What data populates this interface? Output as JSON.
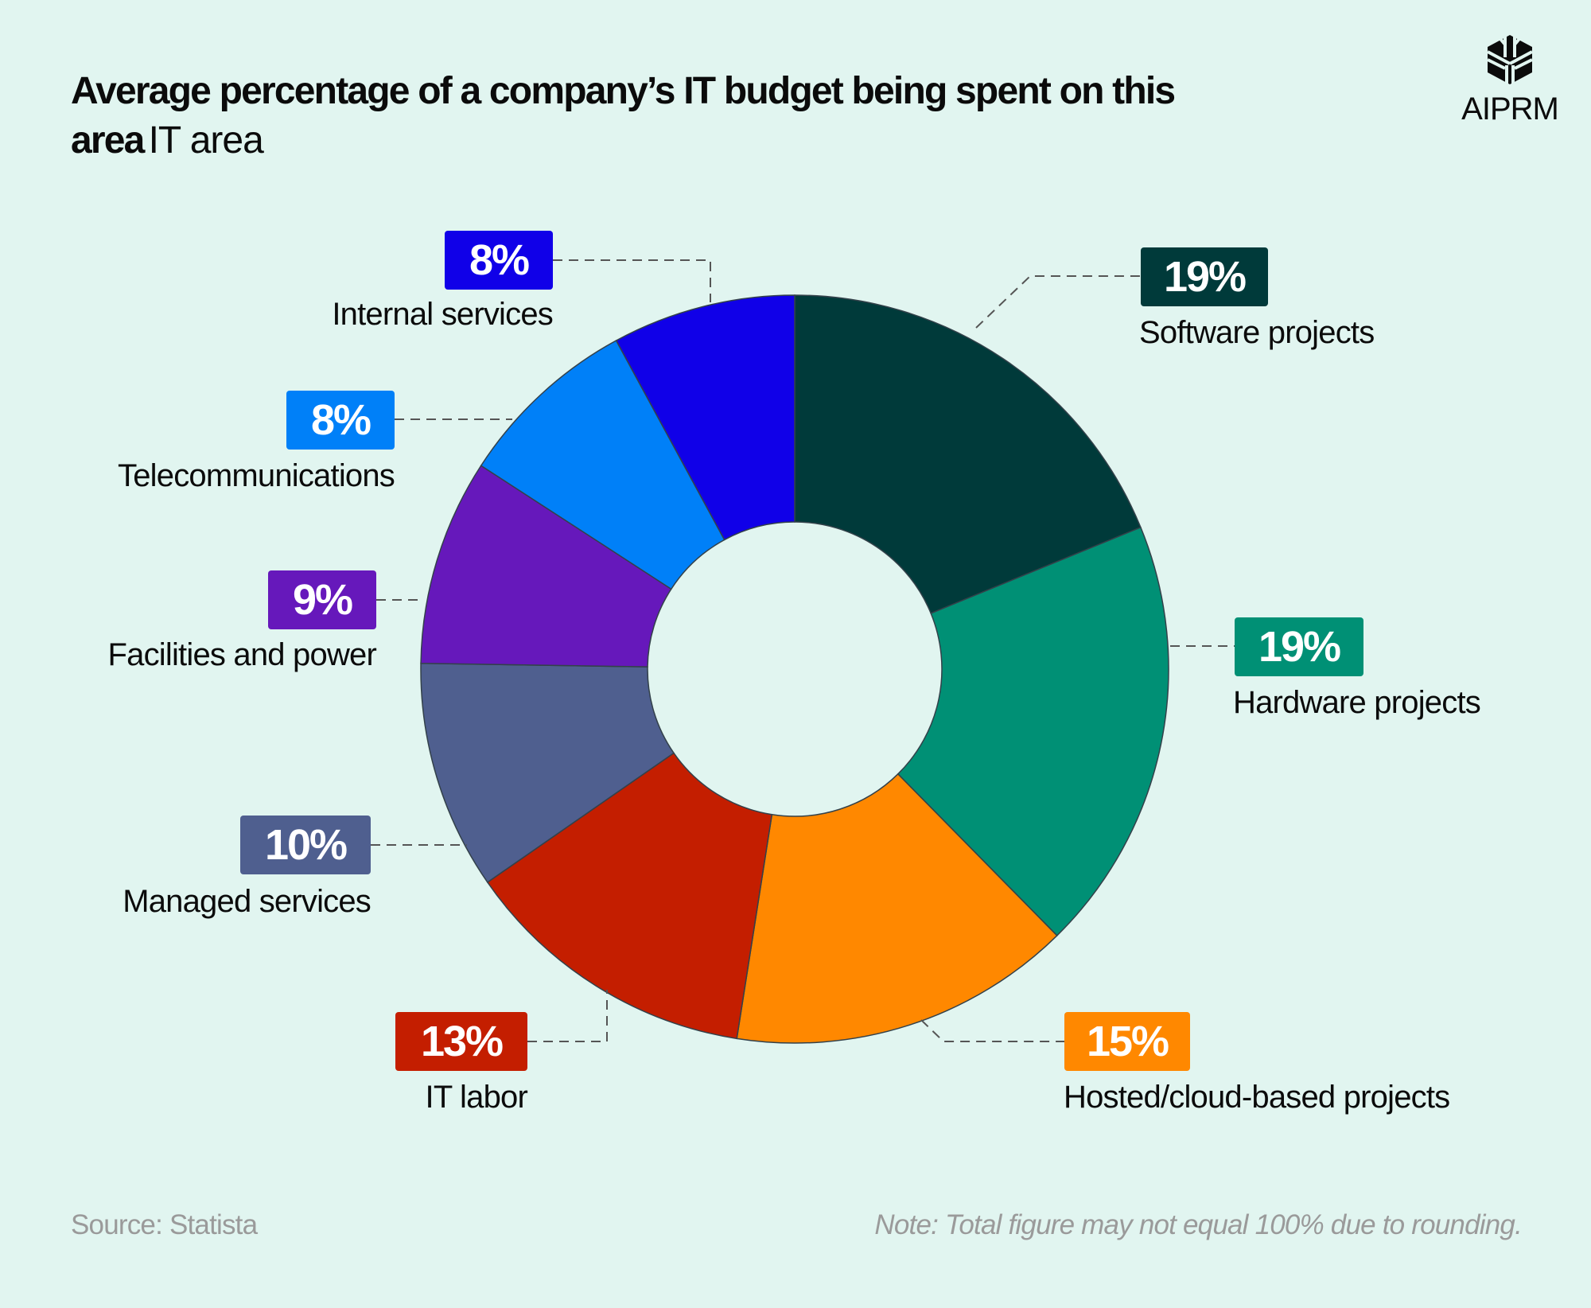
{
  "header": {
    "title_bold": "Average percentage of a company’s IT budget being spent on this area",
    "title_sub": "IT area"
  },
  "logo": {
    "text": "AIPRM",
    "icon": "aiprm-cube-icon"
  },
  "footer": {
    "source": "Source: Statista",
    "note": "Note: Total figure may not equal 100% due to rounding."
  },
  "chart_data": {
    "type": "pie",
    "variant": "donut",
    "title": "Average percentage of a company’s IT budget being spent on this area",
    "subtitle": "IT area",
    "unit": "%",
    "start": "top, clockwise",
    "slices": [
      {
        "label": "Software projects",
        "value": 19,
        "display": "19%",
        "color": "#003a3a"
      },
      {
        "label": "Hardware projects",
        "value": 19,
        "display": "19%",
        "color": "#009075"
      },
      {
        "label": "Hosted/cloud-based projects",
        "value": 15,
        "display": "15%",
        "color": "#ff8800"
      },
      {
        "label": "IT labor",
        "value": 13,
        "display": "13%",
        "color": "#c41e00"
      },
      {
        "label": "Managed services",
        "value": 10,
        "display": "10%",
        "color": "#4f5f8f"
      },
      {
        "label": "Facilities and power",
        "value": 9,
        "display": "9%",
        "color": "#6618bb"
      },
      {
        "label": "Telecommunications",
        "value": 8,
        "display": "8%",
        "color": "#0080f8"
      },
      {
        "label": "Internal services",
        "value": 8,
        "display": "8%",
        "color": "#1000e8"
      }
    ]
  }
}
